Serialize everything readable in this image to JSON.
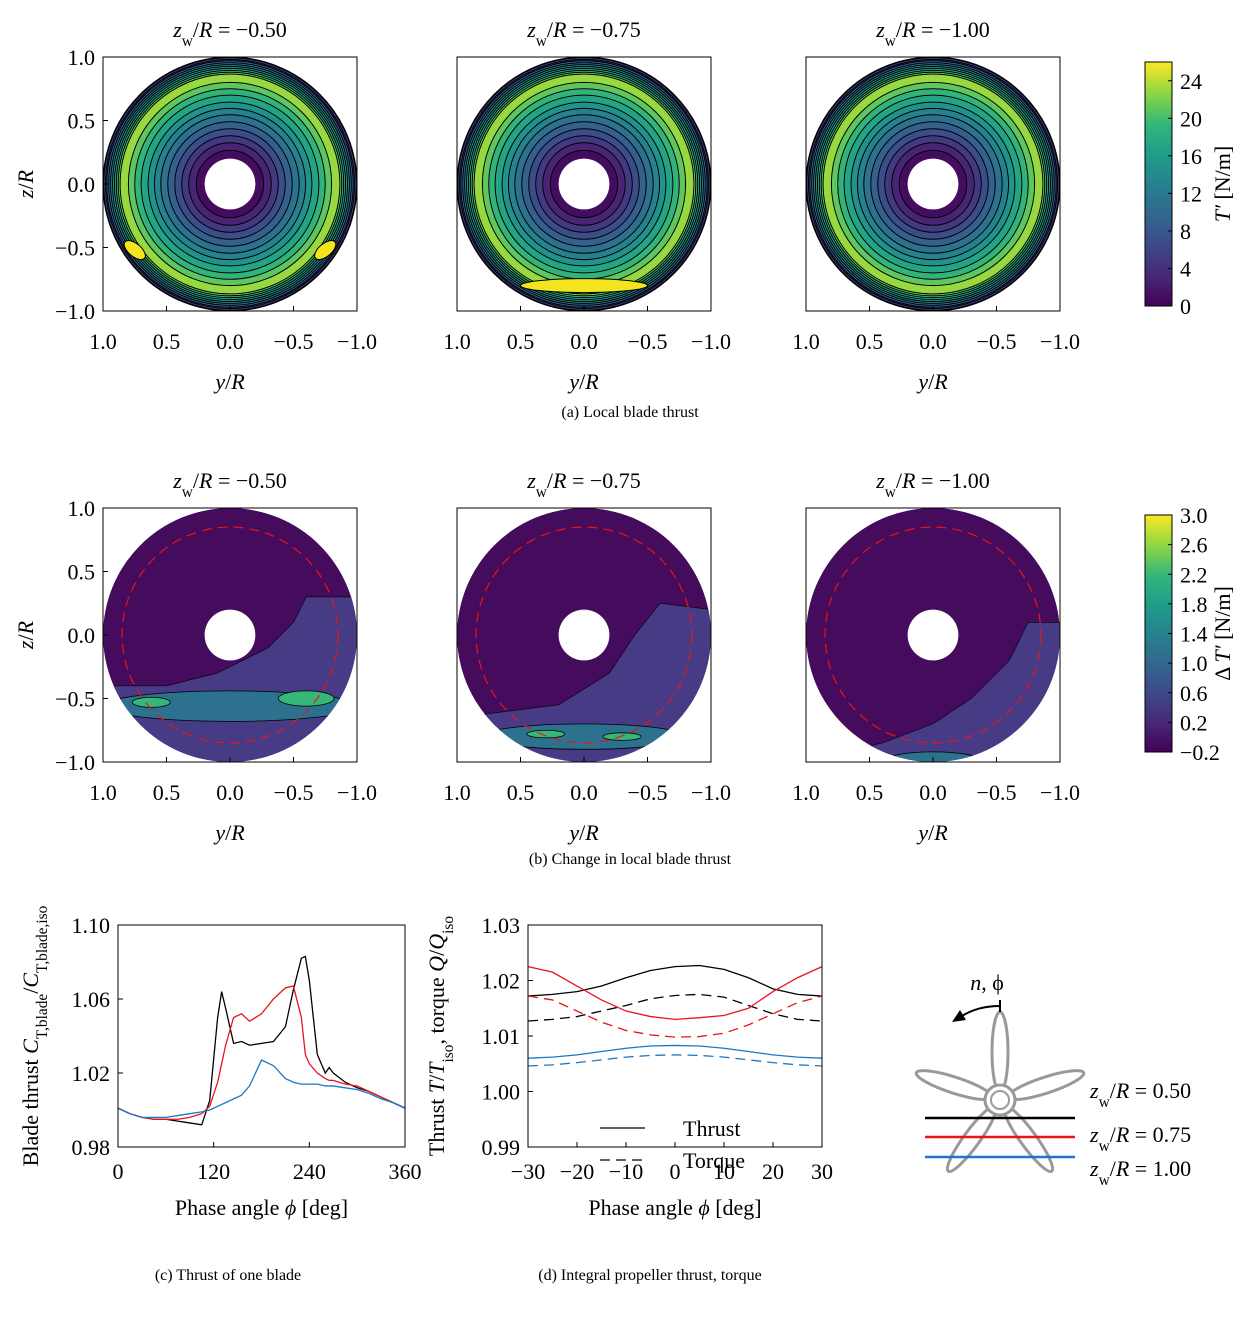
{
  "chart_data": [
    {
      "type": "contour",
      "title": [
        "z",
        "w",
        "/",
        "R",
        "  = −0.50"
      ],
      "xlim": [
        1,
        -1
      ],
      "ylim": [
        -1,
        1
      ],
      "xticks": [
        {
          "value": 1,
          "label": "1.0"
        },
        0.5,
        {
          "value": 0,
          "label": "0.0"
        },
        {
          "value": -0.5,
          "label": "−0.5"
        },
        {
          "value": -1,
          "label": "−1.0"
        }
      ],
      "yticks": [
        {
          "value": -1,
          "label": "−1.0"
        },
        {
          "value": -0.5,
          "label": "−0.5"
        },
        {
          "value": 0,
          "label": "0.0"
        },
        0.5,
        {
          "value": 1,
          "label": "1.0"
        }
      ],
      "xlabel": [
        "y",
        "/",
        "R"
      ],
      "ylabel": [
        "z",
        "/",
        "R"
      ]
    },
    {
      "type": "contour",
      "title": [
        "z",
        "w",
        "/",
        "R",
        "  = −0.75"
      ],
      "xlim": [
        1,
        -1
      ],
      "ylim": [
        -1,
        1
      ],
      "xticks": [
        {
          "value": 1,
          "label": "1.0"
        },
        0.5,
        {
          "value": 0,
          "label": "0.0"
        },
        {
          "value": -0.5,
          "label": "−0.5"
        },
        {
          "value": -1,
          "label": "−1.0"
        }
      ],
      "xlabel": [
        "y",
        "/",
        "R"
      ]
    },
    {
      "type": "contour",
      "title": [
        "z",
        "w",
        "/",
        "R",
        "  = −1.00"
      ],
      "xlim": [
        1,
        -1
      ],
      "ylim": [
        -1,
        1
      ],
      "xticks": [
        {
          "value": 1,
          "label": "1.0"
        },
        0.5,
        {
          "value": 0,
          "label": "0.0"
        },
        {
          "value": -0.5,
          "label": "−0.5"
        },
        {
          "value": -1,
          "label": "−1.0"
        }
      ],
      "xlabel": [
        "y",
        "/",
        "R"
      ]
    },
    {
      "type": "colorbar",
      "colormap": "viridis",
      "label": [
        "T′",
        " [N/m]"
      ],
      "lim": [
        0,
        26
      ],
      "ticks": [
        0,
        4,
        8,
        12,
        16,
        20,
        24
      ]
    },
    {
      "type": "contour-change",
      "title": [
        "z",
        "w",
        "/",
        "R",
        "  = −0.50"
      ],
      "xlim": [
        1,
        -1
      ],
      "ylim": [
        -1,
        1
      ],
      "xticks": [
        {
          "value": 1,
          "label": "1.0"
        },
        0.5,
        {
          "value": 0,
          "label": "0.0"
        },
        {
          "value": -0.5,
          "label": "−0.5"
        },
        {
          "value": -1,
          "label": "−1.0"
        }
      ],
      "yticks": [
        {
          "value": -1,
          "label": "−1.0"
        },
        {
          "value": -0.5,
          "label": "−0.5"
        },
        {
          "value": 0,
          "label": "0.0"
        },
        0.5,
        {
          "value": 1,
          "label": "1.0"
        }
      ],
      "xlabel": [
        "y",
        "/",
        "R"
      ],
      "ylabel": [
        "z",
        "/",
        "R"
      ]
    },
    {
      "type": "contour-change",
      "title": [
        "z",
        "w",
        "/",
        "R",
        "  = −0.75"
      ],
      "xlim": [
        1,
        -1
      ],
      "ylim": [
        -1,
        1
      ],
      "xticks": [
        {
          "value": 1,
          "label": "1.0"
        },
        0.5,
        {
          "value": 0,
          "label": "0.0"
        },
        {
          "value": -0.5,
          "label": "−0.5"
        },
        {
          "value": -1,
          "label": "−1.0"
        }
      ],
      "xlabel": [
        "y",
        "/",
        "R"
      ]
    },
    {
      "type": "contour-change",
      "title": [
        "z",
        "w",
        "/",
        "R",
        "  = −1.00"
      ],
      "xlim": [
        1,
        -1
      ],
      "ylim": [
        -1,
        1
      ],
      "xticks": [
        {
          "value": 1,
          "label": "1.0"
        },
        0.5,
        {
          "value": 0,
          "label": "0.0"
        },
        {
          "value": -0.5,
          "label": "−0.5"
        },
        {
          "value": -1,
          "label": "−1.0"
        }
      ],
      "xlabel": [
        "y",
        "/",
        "R"
      ]
    },
    {
      "type": "colorbar",
      "colormap": "viridis",
      "label": [
        "Δ ",
        "T′",
        " [N/m]"
      ],
      "lim": [
        -0.2,
        3.0
      ],
      "ticks": [
        {
          "value": -0.2,
          "label": "−0.2"
        },
        0.2,
        0.6,
        {
          "value": 1,
          "label": "1.0"
        },
        1.4,
        1.8,
        2.2,
        2.6,
        {
          "value": 3,
          "label": "3.0"
        }
      ]
    },
    {
      "type": "line",
      "xlim": [
        0,
        360
      ],
      "xticks": [
        0,
        120,
        240,
        360
      ],
      "ylim": [
        0.98,
        1.1
      ],
      "yticks": [
        0.98,
        1.02,
        1.06,
        {
          "value": 1.1,
          "label": "1.10"
        }
      ],
      "xlabel": [
        "Phase angle ",
        "ϕ",
        " [deg]"
      ],
      "ylabel": [
        "Blade thrust ",
        "C",
        "T,blade",
        "/",
        "C",
        "T,blade,iso"
      ],
      "x": [
        0,
        15,
        30,
        45,
        60,
        75,
        90,
        105,
        115,
        125,
        130,
        135,
        145,
        155,
        165,
        180,
        195,
        210,
        220,
        230,
        235,
        240,
        250,
        260,
        265,
        270,
        285,
        300,
        315,
        330,
        345,
        360
      ],
      "series": [
        {
          "color": "#000000",
          "dash": false,
          "values": [
            1.001,
            0.998,
            0.996,
            0.995,
            0.995,
            0.994,
            0.993,
            0.992,
            1.005,
            1.05,
            1.064,
            1.055,
            1.036,
            1.037,
            1.035,
            1.036,
            1.037,
            1.045,
            1.065,
            1.082,
            1.083,
            1.07,
            1.03,
            1.02,
            1.023,
            1.02,
            1.015,
            1.012,
            1.01,
            1.007,
            1.004,
            1.001
          ]
        },
        {
          "color": "#e8141c",
          "dash": false,
          "values": [
            1.001,
            0.998,
            0.996,
            0.995,
            0.995,
            0.995,
            0.996,
            0.998,
            1.002,
            1.015,
            1.025,
            1.035,
            1.05,
            1.052,
            1.048,
            1.052,
            1.06,
            1.066,
            1.067,
            1.05,
            1.03,
            1.025,
            1.02,
            1.017,
            1.016,
            1.016,
            1.014,
            1.013,
            1.01,
            1.007,
            1.004,
            1.001
          ]
        },
        {
          "color": "#1f77c4",
          "dash": false,
          "values": [
            1.001,
            0.998,
            0.996,
            0.996,
            0.996,
            0.997,
            0.998,
            0.999,
            1.0,
            1.002,
            1.003,
            1.004,
            1.006,
            1.008,
            1.013,
            1.027,
            1.024,
            1.017,
            1.015,
            1.014,
            1.014,
            1.014,
            1.014,
            1.013,
            1.013,
            1.013,
            1.012,
            1.011,
            1.009,
            1.006,
            1.004,
            1.001
          ]
        }
      ]
    },
    {
      "type": "line",
      "xlim": [
        -30,
        30
      ],
      "xticks": [
        {
          "value": -30,
          "label": "−30"
        },
        {
          "value": -20,
          "label": "−20"
        },
        {
          "value": -10,
          "label": "−10"
        },
        0,
        10,
        20,
        30
      ],
      "ylim": [
        0.99,
        1.03
      ],
      "yticks": [
        0.99,
        {
          "value": 1,
          "label": "1.00"
        },
        1.01,
        1.02,
        1.03
      ],
      "xlabel": [
        "Phase angle ",
        "ϕ",
        " [deg]"
      ],
      "ylabel": [
        "Thrust ",
        "T",
        "/",
        "T",
        "iso",
        ", torque ",
        "Q",
        "/",
        "Q",
        "iso"
      ],
      "legend": [
        {
          "name": "Thrust",
          "dash": false
        },
        {
          "name": "Torque",
          "dash": true
        }
      ],
      "x": [
        -30,
        -25,
        -20,
        -15,
        -10,
        -5,
        0,
        5,
        10,
        15,
        20,
        25,
        30
      ],
      "series": [
        {
          "color": "#000000",
          "dash": false,
          "values": [
            1.0172,
            1.0175,
            1.018,
            1.019,
            1.0205,
            1.0218,
            1.0225,
            1.0227,
            1.022,
            1.0205,
            1.0185,
            1.0175,
            1.0172
          ]
        },
        {
          "color": "#000000",
          "dash": true,
          "values": [
            1.0127,
            1.013,
            1.0135,
            1.0145,
            1.0155,
            1.0167,
            1.0173,
            1.0175,
            1.017,
            1.0155,
            1.014,
            1.013,
            1.0127
          ]
        },
        {
          "color": "#e8141c",
          "dash": false,
          "values": [
            1.0225,
            1.0215,
            1.019,
            1.0165,
            1.0145,
            1.0135,
            1.013,
            1.0133,
            1.0137,
            1.015,
            1.018,
            1.0205,
            1.0225
          ]
        },
        {
          "color": "#e8141c",
          "dash": true,
          "values": [
            1.0172,
            1.0165,
            1.0145,
            1.0125,
            1.011,
            1.0102,
            1.0098,
            1.0099,
            1.0105,
            1.012,
            1.014,
            1.016,
            1.0172
          ]
        },
        {
          "color": "#1f77c4",
          "dash": false,
          "values": [
            1.006,
            1.0062,
            1.0066,
            1.0072,
            1.0078,
            1.0082,
            1.0083,
            1.0082,
            1.0078,
            1.0072,
            1.0066,
            1.0062,
            1.006
          ]
        },
        {
          "color": "#1f77c4",
          "dash": true,
          "values": [
            1.0046,
            1.0048,
            1.0052,
            1.0057,
            1.0062,
            1.0065,
            1.0066,
            1.0065,
            1.0062,
            1.0057,
            1.0052,
            1.0048,
            1.0046
          ]
        }
      ]
    }
  ],
  "captions": [
    "(a) Local blade thrust",
    "(b) Change in local blade thrust",
    "(c) Thrust of one blade",
    "(d) Integral propeller thrust, torque"
  ],
  "diagram": {
    "rotation": [
      "n",
      ", ϕ"
    ],
    "legend": [
      {
        "parts": [
          "z",
          "w",
          "/",
          "R",
          " = 0.50"
        ],
        "color": "#000000"
      },
      {
        "parts": [
          "z",
          "w",
          "/",
          "R",
          " = 0.75"
        ],
        "color": "#e8141c"
      },
      {
        "parts": [
          "z",
          "w",
          "/",
          "R",
          " = 1.00"
        ],
        "color": "#1f77c4"
      }
    ]
  }
}
